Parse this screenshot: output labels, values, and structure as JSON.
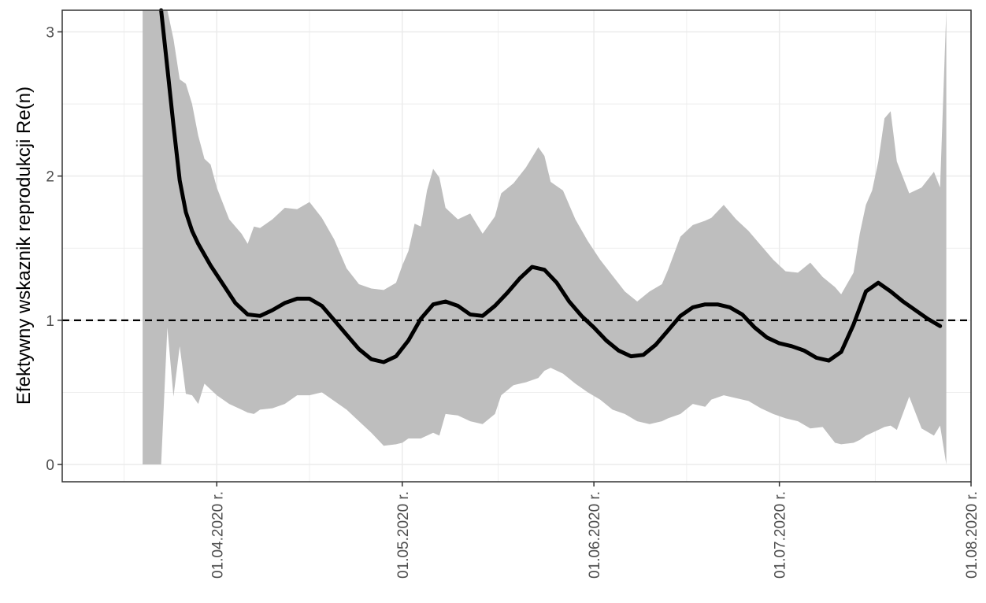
{
  "chart_data": {
    "type": "line",
    "title": "",
    "xlabel": "",
    "ylabel": "Efektywny wskaznik reprodukcji Re(n)",
    "x_axis_type": "date",
    "xlim": [
      "2020-03-07",
      "2020-08-01"
    ],
    "ylim": [
      -0.12,
      3.15
    ],
    "grid": true,
    "legend": "none",
    "reference_line": {
      "y": 1,
      "style": "dashed",
      "color": "#000000"
    },
    "colors": {
      "ribbon": "#bebebe",
      "line": "#000000",
      "grid": "#ebebeb",
      "panel_border": "#333333"
    },
    "x_ticks": [
      {
        "value": "2020-04-01",
        "label": "01.04.2020 r."
      },
      {
        "value": "2020-05-01",
        "label": "01.05.2020 r."
      },
      {
        "value": "2020-06-01",
        "label": "01.06.2020 r."
      },
      {
        "value": "2020-07-01",
        "label": "01.07.2020 r."
      },
      {
        "value": "2020-08-01",
        "label": "01.08.2020 r."
      }
    ],
    "y_ticks": [
      {
        "value": 0,
        "label": "0"
      },
      {
        "value": 1,
        "label": "1"
      },
      {
        "value": 2,
        "label": "2"
      },
      {
        "value": 3,
        "label": "3"
      }
    ],
    "series": [
      {
        "type": "line",
        "x": [
          "2020-03-23",
          "2020-03-24",
          "2020-03-25",
          "2020-03-26",
          "2020-03-27",
          "2020-03-28",
          "2020-03-29",
          "2020-03-31",
          "2020-04-02",
          "2020-04-04",
          "2020-04-06",
          "2020-04-08",
          "2020-04-10",
          "2020-04-12",
          "2020-04-14",
          "2020-04-16",
          "2020-04-18",
          "2020-04-20",
          "2020-04-22",
          "2020-04-24",
          "2020-04-26",
          "2020-04-28",
          "2020-04-30",
          "2020-05-02",
          "2020-05-04",
          "2020-05-06",
          "2020-05-08",
          "2020-05-10",
          "2020-05-12",
          "2020-05-14",
          "2020-05-16",
          "2020-05-18",
          "2020-05-20",
          "2020-05-22",
          "2020-05-24",
          "2020-05-26",
          "2020-05-28",
          "2020-05-30",
          "2020-06-01",
          "2020-06-03",
          "2020-06-05",
          "2020-06-07",
          "2020-06-09",
          "2020-06-11",
          "2020-06-13",
          "2020-06-15",
          "2020-06-17",
          "2020-06-19",
          "2020-06-21",
          "2020-06-23",
          "2020-06-25",
          "2020-06-27",
          "2020-06-29",
          "2020-07-01",
          "2020-07-03",
          "2020-07-05",
          "2020-07-07",
          "2020-07-09",
          "2020-07-11",
          "2020-07-13",
          "2020-07-15",
          "2020-07-17",
          "2020-07-19",
          "2020-07-21",
          "2020-07-23",
          "2020-07-25",
          "2020-07-27"
        ],
        "y": [
          3.15,
          2.75,
          2.35,
          1.97,
          1.75,
          1.62,
          1.53,
          1.38,
          1.25,
          1.12,
          1.04,
          1.03,
          1.07,
          1.12,
          1.15,
          1.15,
          1.1,
          1.0,
          0.9,
          0.8,
          0.73,
          0.71,
          0.75,
          0.86,
          1.01,
          1.11,
          1.13,
          1.1,
          1.04,
          1.03,
          1.1,
          1.19,
          1.29,
          1.37,
          1.35,
          1.26,
          1.13,
          1.03,
          0.95,
          0.86,
          0.79,
          0.75,
          0.76,
          0.83,
          0.93,
          1.03,
          1.09,
          1.11,
          1.11,
          1.09,
          1.04,
          0.95,
          0.88,
          0.84,
          0.82,
          0.79,
          0.74,
          0.72,
          0.78,
          0.97,
          1.2,
          1.26,
          1.2,
          1.13,
          1.07,
          1.01,
          0.96
        ]
      },
      {
        "type": "ribbon",
        "x": [
          "2020-03-20",
          "2020-03-23",
          "2020-03-24",
          "2020-03-25",
          "2020-03-26",
          "2020-03-27",
          "2020-03-28",
          "2020-03-29",
          "2020-03-30",
          "2020-03-31",
          "2020-04-01",
          "2020-04-03",
          "2020-04-05",
          "2020-04-06",
          "2020-04-07",
          "2020-04-08",
          "2020-04-10",
          "2020-04-12",
          "2020-04-14",
          "2020-04-16",
          "2020-04-18",
          "2020-04-20",
          "2020-04-22",
          "2020-04-24",
          "2020-04-26",
          "2020-04-28",
          "2020-04-30",
          "2020-05-01",
          "2020-05-02",
          "2020-05-03",
          "2020-05-04",
          "2020-05-05",
          "2020-05-06",
          "2020-05-07",
          "2020-05-08",
          "2020-05-10",
          "2020-05-12",
          "2020-05-14",
          "2020-05-16",
          "2020-05-17",
          "2020-05-19",
          "2020-05-21",
          "2020-05-23",
          "2020-05-24",
          "2020-05-25",
          "2020-05-27",
          "2020-05-29",
          "2020-05-31",
          "2020-06-02",
          "2020-06-04",
          "2020-06-06",
          "2020-06-08",
          "2020-06-10",
          "2020-06-12",
          "2020-06-13",
          "2020-06-15",
          "2020-06-17",
          "2020-06-19",
          "2020-06-20",
          "2020-06-22",
          "2020-06-24",
          "2020-06-26",
          "2020-06-28",
          "2020-06-30",
          "2020-07-02",
          "2020-07-04",
          "2020-07-06",
          "2020-07-08",
          "2020-07-10",
          "2020-07-11",
          "2020-07-13",
          "2020-07-14",
          "2020-07-15",
          "2020-07-16",
          "2020-07-17",
          "2020-07-18",
          "2020-07-19",
          "2020-07-20",
          "2020-07-22",
          "2020-07-24",
          "2020-07-26",
          "2020-07-27",
          "2020-07-28"
        ],
        "upper": [
          3.15,
          3.15,
          3.15,
          2.95,
          2.67,
          2.64,
          2.5,
          2.28,
          2.12,
          2.08,
          1.92,
          1.7,
          1.6,
          1.53,
          1.65,
          1.64,
          1.7,
          1.78,
          1.77,
          1.82,
          1.71,
          1.56,
          1.36,
          1.25,
          1.22,
          1.21,
          1.26,
          1.38,
          1.48,
          1.67,
          1.65,
          1.9,
          2.05,
          1.99,
          1.78,
          1.7,
          1.74,
          1.6,
          1.72,
          1.88,
          1.95,
          2.06,
          2.2,
          2.14,
          1.96,
          1.9,
          1.7,
          1.55,
          1.42,
          1.31,
          1.2,
          1.13,
          1.2,
          1.25,
          1.35,
          1.58,
          1.66,
          1.69,
          1.71,
          1.8,
          1.7,
          1.62,
          1.52,
          1.42,
          1.34,
          1.33,
          1.4,
          1.3,
          1.23,
          1.18,
          1.33,
          1.6,
          1.8,
          1.9,
          2.1,
          2.4,
          2.45,
          2.1,
          1.88,
          1.92,
          2.03,
          1.92,
          3.15
        ],
        "lower": [
          0.0,
          0.0,
          0.95,
          0.47,
          0.82,
          0.49,
          0.48,
          0.42,
          0.56,
          0.52,
          0.48,
          0.42,
          0.38,
          0.36,
          0.35,
          0.38,
          0.39,
          0.42,
          0.48,
          0.48,
          0.5,
          0.44,
          0.38,
          0.3,
          0.22,
          0.13,
          0.14,
          0.15,
          0.18,
          0.18,
          0.18,
          0.2,
          0.22,
          0.2,
          0.35,
          0.34,
          0.3,
          0.28,
          0.35,
          0.48,
          0.55,
          0.57,
          0.6,
          0.65,
          0.67,
          0.63,
          0.56,
          0.5,
          0.45,
          0.38,
          0.35,
          0.3,
          0.28,
          0.3,
          0.32,
          0.35,
          0.42,
          0.4,
          0.45,
          0.48,
          0.46,
          0.44,
          0.39,
          0.35,
          0.32,
          0.3,
          0.25,
          0.26,
          0.15,
          0.14,
          0.15,
          0.17,
          0.2,
          0.22,
          0.24,
          0.26,
          0.27,
          0.24,
          0.47,
          0.25,
          0.2,
          0.27,
          0.0
        ]
      }
    ]
  }
}
